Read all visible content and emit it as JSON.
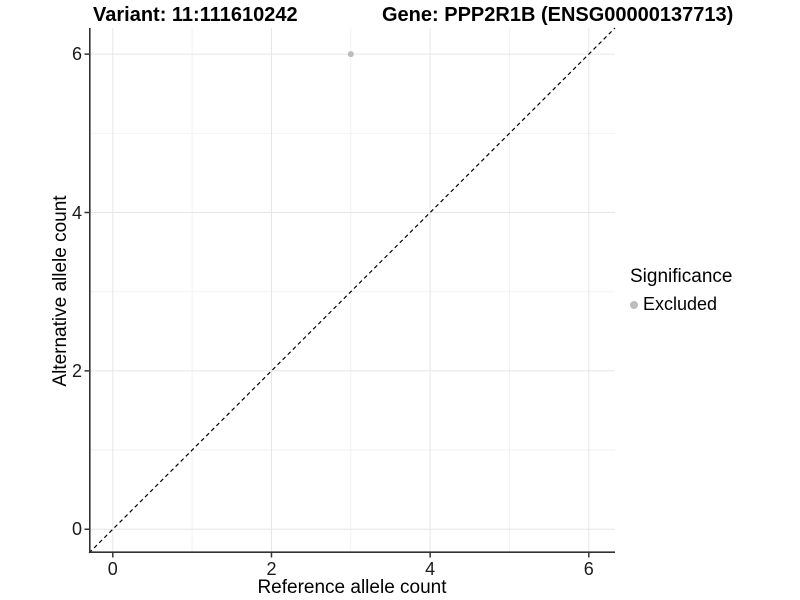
{
  "titles": {
    "variant": "Variant: 11:111610242",
    "gene": "Gene: PPP2R1B (ENSG00000137713)"
  },
  "axes": {
    "x": {
      "label": "Reference allele count",
      "tick_labels": [
        "0",
        "2",
        "4",
        "6"
      ]
    },
    "y": {
      "label": "Alternative allele count",
      "tick_labels": [
        "0",
        "2",
        "4",
        "6"
      ]
    }
  },
  "legend": {
    "title": "Significance",
    "items": [
      {
        "label": "Excluded",
        "swatch_color": "#bdbdbd"
      }
    ]
  },
  "colors": {
    "background": "#ffffff",
    "axis_line": "#333333",
    "grid_major": "#e6e6e6",
    "grid_minor": "#f2f2f2",
    "tick_mark": "#333333",
    "tick_label": "#1a1a1a",
    "reference_line": "#000000",
    "point_excluded": "#bdbdbd"
  },
  "chart_data": {
    "type": "scatter",
    "title_left": "Variant: 11:111610242",
    "title_right": "Gene: PPP2R1B (ENSG00000137713)",
    "xlabel": "Reference allele count",
    "ylabel": "Alternative allele count",
    "xlim": [
      -0.3,
      6.33
    ],
    "ylim": [
      -0.3,
      6.33
    ],
    "x_ticks": [
      0,
      2,
      4,
      6
    ],
    "y_ticks": [
      0,
      2,
      4,
      6
    ],
    "x_minor_ticks": [
      1,
      3,
      5
    ],
    "y_minor_ticks": [
      1,
      3,
      5
    ],
    "grid": "major and minor, light gray, white background",
    "legend_position": "right",
    "series": [
      {
        "name": "Excluded",
        "color": "#bdbdbd",
        "point_radius": 3,
        "points": [
          [
            3,
            6
          ]
        ]
      }
    ],
    "reference_line": {
      "kind": "identity y = x",
      "style": "dashed",
      "color": "#000000",
      "span": "full panel corner to corner"
    }
  }
}
